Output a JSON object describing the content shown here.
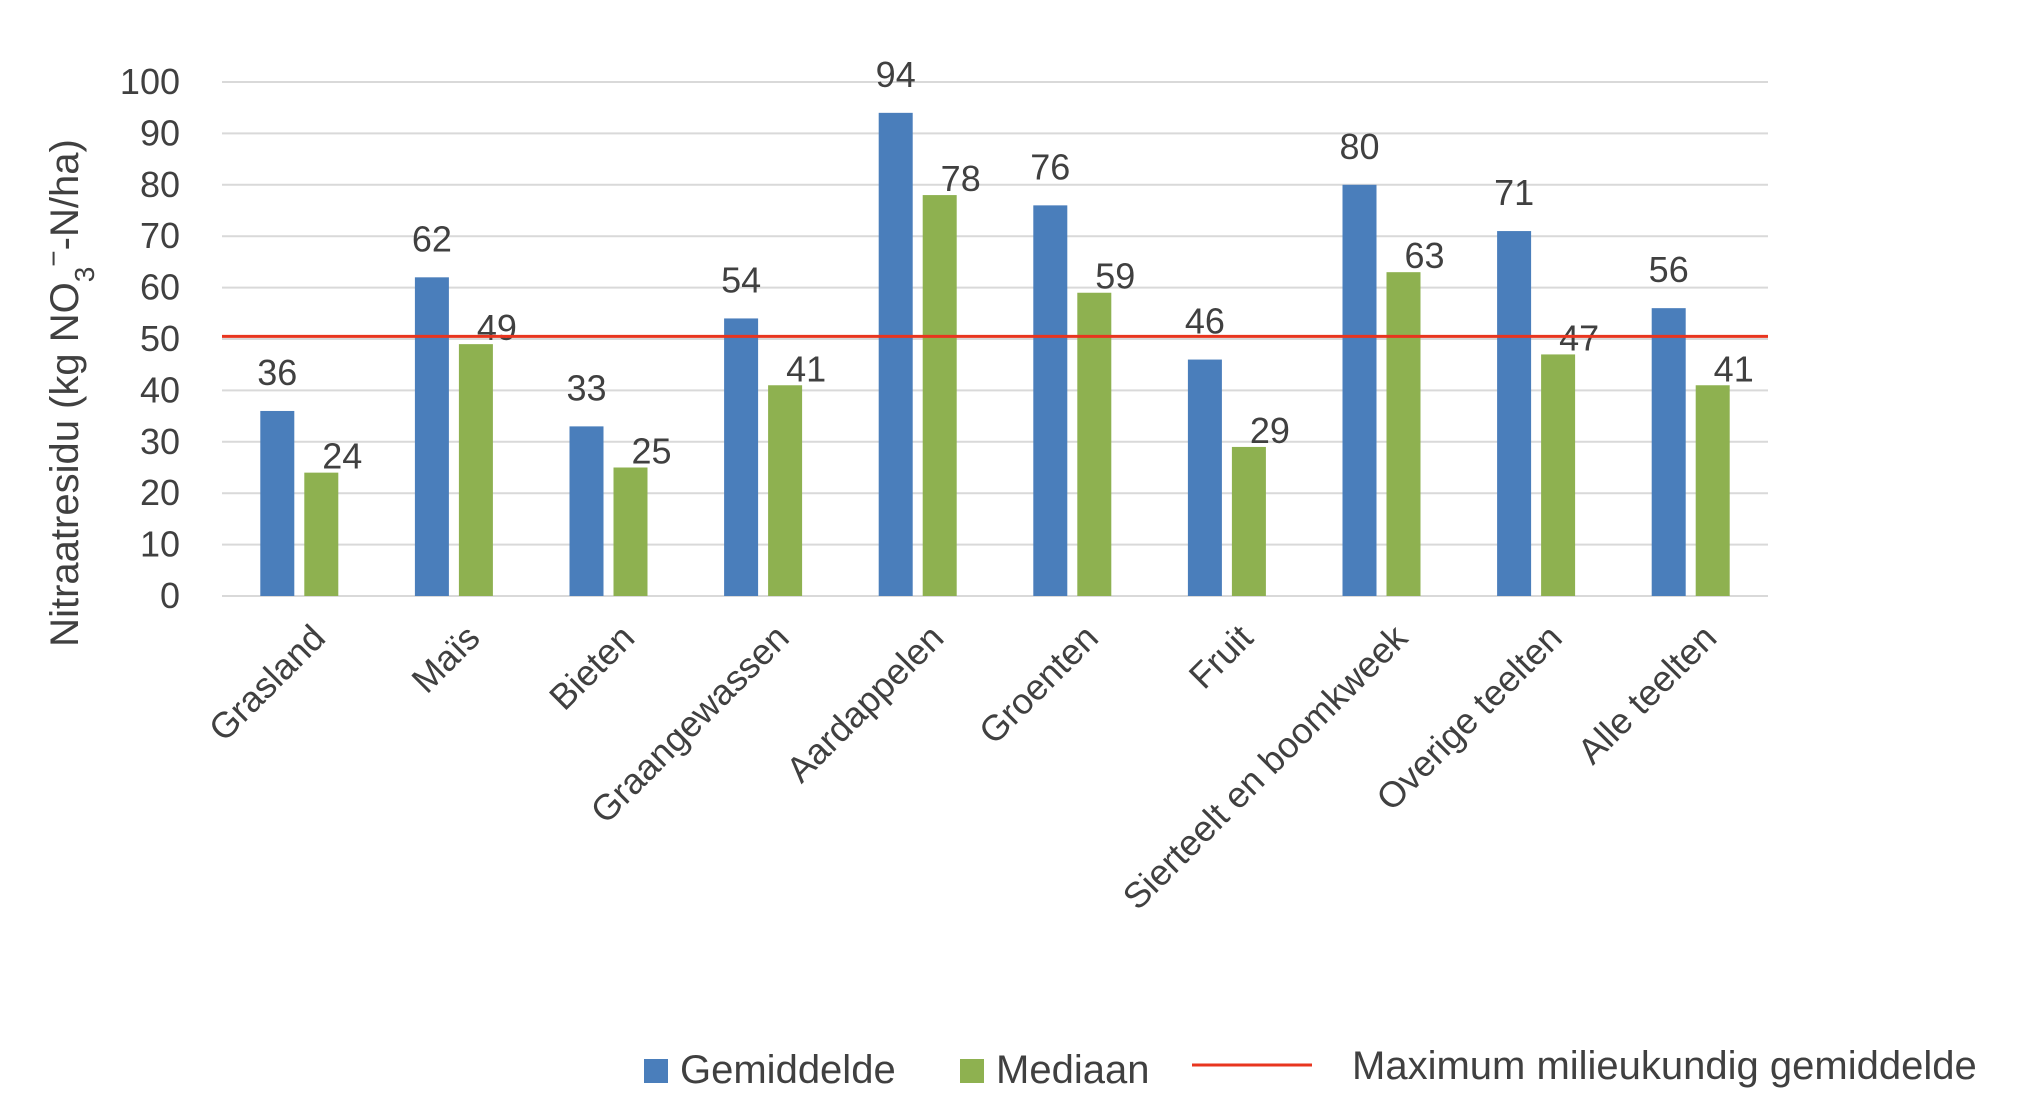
{
  "chart_data": {
    "type": "bar",
    "ylabel": "Nitraatresidu (kg NO3−-N/ha)",
    "ylabel_parts": {
      "pre": "Nitraatresidu (kg NO",
      "sub": "3",
      "sup": "−",
      "post": "-N/ha)"
    },
    "ylim": [
      0,
      100
    ],
    "yticks": [
      0,
      10,
      20,
      30,
      40,
      50,
      60,
      70,
      80,
      90,
      100
    ],
    "grid": true,
    "legend_position": "bottom",
    "categories": [
      "Grasland",
      "Maïs",
      "Bieten",
      "Graangewassen",
      "Aardappelen",
      "Groenten",
      "Fruit",
      "Sierteelt en boomkweek",
      "Overige teelten",
      "Alle teelten"
    ],
    "series": [
      {
        "name": "Gemiddelde",
        "color": "#4a7ebb",
        "values": [
          36,
          62,
          33,
          54,
          94,
          76,
          46,
          80,
          71,
          56
        ]
      },
      {
        "name": "Mediaan",
        "color": "#8eb150",
        "values": [
          24,
          49,
          25,
          41,
          78,
          59,
          29,
          63,
          47,
          41
        ]
      }
    ],
    "reference_line": {
      "name": "Maximum milieukundig gemiddelde",
      "value": 50.5,
      "color": "#e8351f"
    }
  }
}
